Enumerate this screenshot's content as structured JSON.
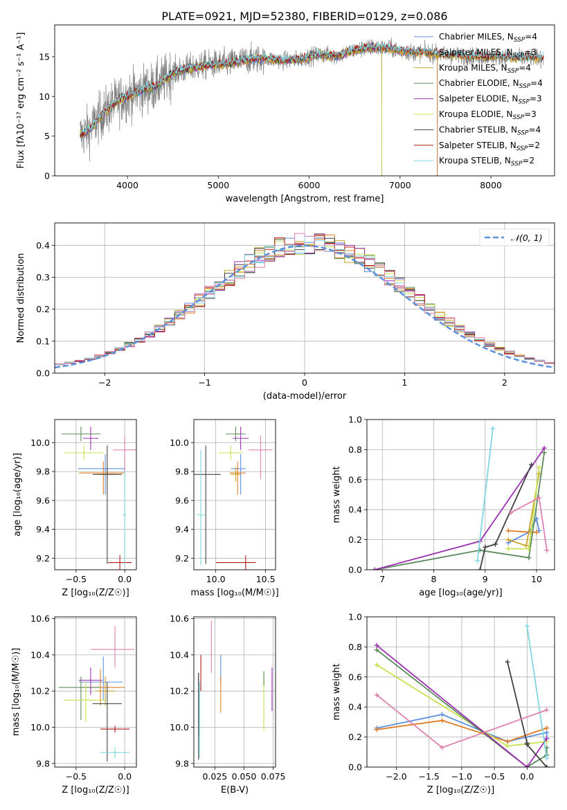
{
  "figure_title": "PLATE=0921, MJD=52380, FIBERID=0129, z=0.086",
  "colors": {
    "data": "#7f7f7f",
    "Chabrier MILES": "#5b8fdd",
    "Salpeter MILES": "#e07b22",
    "Kroupa MILES": "#c9a227",
    "Chabrier ELODIE": "#5a8a5a",
    "Salpeter ELODIE": "#9b30b0",
    "Kroupa ELODIE": "#c8e04a",
    "Chabrier STELIB": "#404040",
    "Salpeter STELIB": "#b01818",
    "Kroupa STELIB": "#7fd6e0",
    "Gaussian": "#5b8fdd",
    "Pink": "#e080b0"
  },
  "chart_data": [
    {
      "id": "spectrum",
      "type": "line",
      "title": "PLATE=0921, MJD=52380, FIBERID=0129, z=0.086",
      "xlabel": "wavelength [Angstrom, rest frame]",
      "ylabel": "Flux [fλ10⁻¹⁷ erg cm⁻² s⁻¹ A⁻¹]",
      "xlim": [
        3200,
        8700
      ],
      "ylim": [
        0,
        19
      ],
      "xticks": [
        4000,
        5000,
        6000,
        7000,
        8000
      ],
      "yticks": [
        0,
        5,
        10,
        15
      ],
      "legend_position": "right",
      "series": [
        {
          "name": "Chabrier MILES, N_SSP=4"
        },
        {
          "name": "Salpeter MILES, N_SSP=3"
        },
        {
          "name": "Kroupa MILES, N_SSP=4"
        },
        {
          "name": "Chabrier ELODIE, N_SSP=4"
        },
        {
          "name": "Salpeter ELODIE, N_SSP=3"
        },
        {
          "name": "Kroupa ELODIE, N_SSP=3"
        },
        {
          "name": "Chabrier STELIB, N_SSP=4"
        },
        {
          "name": "Salpeter STELIB, N_SSP=2"
        },
        {
          "name": "Kroupa STELIB, N_SSP=2"
        }
      ],
      "continuum": {
        "x": [
          3500,
          3600,
          3700,
          3800,
          3900,
          4000,
          4100,
          4200,
          4300,
          4400,
          4500,
          4700,
          4900,
          5100,
          5300,
          5500,
          5700,
          5900,
          6100,
          6300,
          6500,
          6700,
          6900,
          7100,
          7300,
          7500,
          7700,
          7900,
          8100,
          8300,
          8500
        ],
        "y": [
          5.2,
          6.0,
          7.5,
          8.5,
          9.5,
          10.0,
          10.5,
          11.0,
          11.2,
          12.0,
          13.0,
          13.6,
          14.0,
          14.1,
          14.6,
          14.8,
          14.5,
          14.7,
          15.3,
          15.1,
          15.8,
          16.2,
          16.0,
          15.6,
          15.5,
          15.2,
          15.1,
          15.0,
          15.0,
          14.8,
          14.9
        ]
      }
    },
    {
      "id": "residuals",
      "type": "line",
      "xlabel": "(data-model)/error",
      "ylabel": "Normed distribution",
      "xlim": [
        -2.5,
        2.5
      ],
      "ylim": [
        0,
        0.47
      ],
      "xticks": [
        -2,
        -1,
        0,
        1,
        2
      ],
      "yticks": [
        0.0,
        0.1,
        0.2,
        0.3,
        0.4
      ],
      "legend": "𝒩(0, 1)",
      "legend_position": "top-right",
      "reference": "standard normal pdf"
    },
    {
      "id": "age_vs_Z",
      "type": "scatter",
      "xlabel": "Z [log₁₀(Z/Z☉)]",
      "ylabel": "age  [log₁₀(age/yr)]",
      "xlim": [
        -0.72,
        0.12
      ],
      "ylim": [
        9.12,
        10.16
      ],
      "xticks": [
        -0.5,
        0.0
      ],
      "yticks": [
        9.2,
        9.4,
        9.6,
        9.8,
        10.0
      ],
      "points": [
        {
          "series": "Chabrier MILES",
          "x": -0.2,
          "y": 9.82,
          "xerr": [
            0.28,
            0.2
          ],
          "yerr": [
            0.18,
            0.1
          ]
        },
        {
          "series": "Salpeter MILES",
          "x": -0.22,
          "y": 9.79,
          "xerr": [
            0.25,
            0.22
          ],
          "yerr": [
            0.15,
            0.08
          ]
        },
        {
          "series": "Kroupa MILES",
          "x": -0.18,
          "y": 9.78,
          "xerr": [
            0.1,
            0.1
          ],
          "yerr": [
            0.05,
            0.05
          ]
        },
        {
          "series": "Chabrier ELODIE",
          "x": -0.45,
          "y": 10.06,
          "xerr": [
            0.2,
            0.2
          ],
          "yerr": [
            0.05,
            0.05
          ]
        },
        {
          "series": "Salpeter ELODIE",
          "x": -0.35,
          "y": 10.03,
          "xerr": [
            0.08,
            0.08
          ],
          "yerr": [
            0.08,
            0.08
          ]
        },
        {
          "series": "Kroupa ELODIE",
          "x": -0.42,
          "y": 9.93,
          "xerr": [
            0.2,
            0.2
          ],
          "yerr": [
            0.05,
            0.05
          ]
        },
        {
          "series": "Chabrier STELIB",
          "x": -0.18,
          "y": 9.78,
          "xerr": [
            0.15,
            0.15
          ],
          "yerr": [
            0.62,
            0.2
          ]
        },
        {
          "series": "Salpeter STELIB",
          "x": -0.05,
          "y": 9.17,
          "xerr": [
            0.12,
            0.12
          ],
          "yerr": [
            0.05,
            0.05
          ]
        },
        {
          "series": "Kroupa STELIB",
          "x": 0.0,
          "y": 9.5,
          "xerr": [
            0.02,
            0.02
          ],
          "yerr": [
            0.35,
            0.45
          ]
        },
        {
          "series": "Pink",
          "x": 0.0,
          "y": 9.95,
          "xerr": [
            0.12,
            0.12
          ],
          "yerr": [
            0.15,
            0.1
          ]
        }
      ]
    },
    {
      "id": "age_vs_mass",
      "type": "scatter",
      "xlabel": "mass [log₁₀(M/M☉)]",
      "ylabel": "",
      "xlim": [
        9.78,
        10.6
      ],
      "ylim": [
        9.12,
        10.16
      ],
      "xticks": [
        10.0,
        10.5
      ],
      "yticks": [
        9.2,
        9.4,
        9.6,
        9.8,
        10.0
      ],
      "points": [
        {
          "series": "Chabrier MILES",
          "x": 10.25,
          "y": 9.82,
          "xerr": [
            0.1,
            0.05
          ],
          "yerr": [
            0.18,
            0.1
          ]
        },
        {
          "series": "Salpeter MILES",
          "x": 10.22,
          "y": 9.79,
          "xerr": [
            0.08,
            0.08
          ],
          "yerr": [
            0.15,
            0.08
          ]
        },
        {
          "series": "Kroupa MILES",
          "x": 10.2,
          "y": 9.78,
          "xerr": [
            0.05,
            0.05
          ],
          "yerr": [
            0.05,
            0.05
          ]
        },
        {
          "series": "Chabrier ELODIE",
          "x": 10.2,
          "y": 10.06,
          "xerr": [
            0.1,
            0.1
          ],
          "yerr": [
            0.05,
            0.05
          ]
        },
        {
          "series": "Salpeter ELODIE",
          "x": 10.25,
          "y": 10.03,
          "xerr": [
            0.08,
            0.08
          ],
          "yerr": [
            0.08,
            0.08
          ]
        },
        {
          "series": "Kroupa ELODIE",
          "x": 10.15,
          "y": 9.93,
          "xerr": [
            0.12,
            0.12
          ],
          "yerr": [
            0.05,
            0.05
          ]
        },
        {
          "series": "Chabrier STELIB",
          "x": 9.9,
          "y": 9.78,
          "xerr": [
            0.15,
            0.15
          ],
          "yerr": [
            0.62,
            0.2
          ]
        },
        {
          "series": "Salpeter STELIB",
          "x": 10.3,
          "y": 9.17,
          "xerr": [
            0.3,
            0.1
          ],
          "yerr": [
            0.05,
            0.05
          ]
        },
        {
          "series": "Kroupa STELIB",
          "x": 9.85,
          "y": 9.5,
          "xerr": [
            0.04,
            0.04
          ],
          "yerr": [
            0.35,
            0.45
          ]
        },
        {
          "series": "Pink",
          "x": 10.45,
          "y": 9.95,
          "xerr": [
            0.12,
            0.12
          ],
          "yerr": [
            0.2,
            0.1
          ]
        }
      ]
    },
    {
      "id": "mass_weight_vs_age",
      "type": "line",
      "xlabel": "age  [log₁₀(age/yr)]",
      "ylabel": "mass weight",
      "xlim": [
        6.7,
        10.35
      ],
      "ylim": [
        0,
        1.0
      ],
      "xticks": [
        7,
        8,
        9,
        10
      ],
      "yticks": [
        0.0,
        0.2,
        0.4,
        0.6,
        0.8,
        1.0
      ],
      "series": [
        {
          "name": "Chabrier MILES",
          "x": [
            9.45,
            9.85,
            10.0,
            10.05
          ],
          "y": [
            0.18,
            0.25,
            0.34,
            0.26
          ]
        },
        {
          "name": "Salpeter MILES",
          "x": [
            9.45,
            9.9,
            10.0
          ],
          "y": [
            0.26,
            0.25,
            0.25
          ]
        },
        {
          "name": "Kroupa MILES",
          "x": [
            9.45,
            9.8,
            10.05
          ],
          "y": [
            0.2,
            0.16,
            0.64
          ]
        },
        {
          "name": "Chabrier ELODIE",
          "x": [
            6.85,
            8.9,
            9.85,
            10.15
          ],
          "y": [
            0.0,
            0.13,
            0.08,
            0.78
          ]
        },
        {
          "name": "Salpeter ELODIE",
          "x": [
            6.85,
            8.9,
            10.15
          ],
          "y": [
            0.0,
            0.19,
            0.81
          ]
        },
        {
          "name": "Kroupa ELODIE",
          "x": [
            9.45,
            9.85,
            10.05
          ],
          "y": [
            0.14,
            0.14,
            0.68
          ]
        },
        {
          "name": "Chabrier STELIB",
          "x": [
            8.9,
            9.0,
            9.2,
            9.9
          ],
          "y": [
            0.0,
            0.15,
            0.17,
            0.7
          ]
        },
        {
          "name": "Kroupa STELIB",
          "x": [
            8.85,
            9.15
          ],
          "y": [
            0.06,
            0.94
          ]
        },
        {
          "name": "Pink",
          "x": [
            9.5,
            10.05,
            10.2
          ],
          "y": [
            0.38,
            0.48,
            0.13
          ]
        }
      ]
    },
    {
      "id": "mass_vs_Z",
      "type": "scatter",
      "xlabel": "Z [log₁₀(Z/Z☉)]",
      "ylabel": "mass [log₁₀(M/M☉)]",
      "xlim": [
        -0.72,
        0.12
      ],
      "ylim": [
        9.78,
        10.61
      ],
      "xticks": [
        -0.5,
        0.0
      ],
      "yticks": [
        9.8,
        10.0,
        10.2,
        10.4,
        10.6
      ],
      "points": [
        {
          "series": "Chabrier MILES",
          "x": -0.22,
          "y": 10.25,
          "xerr": [
            0.25,
            0.2
          ],
          "yerr": [
            0.1,
            0.14
          ]
        },
        {
          "series": "Salpeter MILES",
          "x": -0.25,
          "y": 10.22,
          "xerr": [
            0.2,
            0.25
          ],
          "yerr": [
            0.1,
            0.1
          ]
        },
        {
          "series": "Kroupa MILES",
          "x": -0.2,
          "y": 10.2,
          "xerr": [
            0.1,
            0.1
          ],
          "yerr": [
            0.08,
            0.08
          ]
        },
        {
          "series": "Chabrier ELODIE",
          "x": -0.45,
          "y": 10.22,
          "xerr": [
            0.23,
            0.2
          ],
          "yerr": [
            0.18,
            0.06
          ]
        },
        {
          "series": "Salpeter ELODIE",
          "x": -0.35,
          "y": 10.26,
          "xerr": [
            0.12,
            0.12
          ],
          "yerr": [
            0.08,
            0.07
          ]
        },
        {
          "series": "Kroupa ELODIE",
          "x": -0.4,
          "y": 10.15,
          "xerr": [
            0.22,
            0.2
          ],
          "yerr": [
            0.12,
            0.1
          ]
        },
        {
          "series": "Chabrier STELIB",
          "x": -0.18,
          "y": 10.13,
          "xerr": [
            0.15,
            0.15
          ],
          "yerr": [
            0.32,
            0.12
          ]
        },
        {
          "series": "Salpeter STELIB",
          "x": -0.1,
          "y": 9.99,
          "xerr": [
            0.15,
            0.15
          ],
          "yerr": [
            0.02,
            0.02
          ]
        },
        {
          "series": "Kroupa STELIB",
          "x": -0.1,
          "y": 9.86,
          "xerr": [
            0.15,
            0.15
          ],
          "yerr": [
            0.03,
            0.03
          ]
        },
        {
          "series": "Pink",
          "x": -0.1,
          "y": 10.43,
          "xerr": [
            0.25,
            0.2
          ],
          "yerr": [
            0.1,
            0.13
          ]
        }
      ]
    },
    {
      "id": "mass_vs_ebv",
      "type": "scatter",
      "xlabel": "E(B-V)",
      "ylabel": "",
      "xlim": [
        0.007,
        0.077
      ],
      "ylim": [
        9.78,
        10.61
      ],
      "xticks": [
        0.025,
        0.05,
        0.075
      ],
      "yticks": [
        9.8,
        10.0,
        10.2,
        10.4,
        10.6
      ],
      "points": [
        {
          "series": "Chabrier ELODIE",
          "x": 0.011,
          "y": 10.15,
          "yerr": [
            0.2,
            0.15
          ]
        },
        {
          "series": "Chabrier STELIB",
          "x": 0.011,
          "y": 10.1,
          "yerr": [
            0.28,
            0.2
          ]
        },
        {
          "series": "Kroupa STELIB",
          "x": 0.012,
          "y": 10.05,
          "yerr": [
            0.22,
            0.2
          ]
        },
        {
          "series": "Salpeter STELIB",
          "x": 0.013,
          "y": 10.3,
          "yerr": [
            0.1,
            0.1
          ]
        },
        {
          "series": "Pink",
          "x": 0.022,
          "y": 10.45,
          "yerr": [
            0.15,
            0.14
          ]
        },
        {
          "series": "Chabrier MILES",
          "x": 0.03,
          "y": 10.3,
          "yerr": [
            0.05,
            0.1
          ]
        },
        {
          "series": "Salpeter MILES",
          "x": 0.03,
          "y": 10.18,
          "yerr": [
            0.1,
            0.1
          ]
        },
        {
          "series": "Kroupa ELODIE",
          "x": 0.067,
          "y": 10.18,
          "yerr": [
            0.2,
            0.12
          ]
        },
        {
          "series": "Chabrier ELODIE",
          "x": 0.067,
          "y": 10.28,
          "yerr": [
            0.05,
            0.03
          ]
        },
        {
          "series": "Salpeter ELODIE",
          "x": 0.074,
          "y": 10.21,
          "yerr": [
            0.12,
            0.12
          ]
        }
      ]
    },
    {
      "id": "mass_weight_vs_Z",
      "type": "line",
      "xlabel": "Z [log₁₀(Z/Z☉)]",
      "ylabel": "mass weight",
      "xlim": [
        -2.45,
        0.42
      ],
      "ylim": [
        0,
        1.0
      ],
      "xticks": [
        -2.0,
        -1.5,
        -1.0,
        -0.5,
        0.0
      ],
      "yticks": [
        0.0,
        0.2,
        0.4,
        0.6,
        0.8,
        1.0
      ],
      "series": [
        {
          "name": "Chabrier MILES",
          "x": [
            -2.3,
            -1.3,
            -0.3,
            0.3,
            0.3
          ],
          "y": [
            0.26,
            0.35,
            0.17,
            0.23,
            0.19
          ]
        },
        {
          "name": "Salpeter MILES",
          "x": [
            -2.3,
            -1.3,
            -0.3,
            0.3
          ],
          "y": [
            0.25,
            0.31,
            0.17,
            0.26
          ]
        },
        {
          "name": "Kroupa ELODIE",
          "x": [
            -2.3,
            -0.3,
            0.3
          ],
          "y": [
            0.68,
            0.14,
            0.17
          ]
        },
        {
          "name": "Chabrier ELODIE",
          "x": [
            -2.3,
            0.0,
            0.3,
            0.3
          ],
          "y": [
            0.78,
            0.0,
            0.08,
            0.13
          ]
        },
        {
          "name": "Salpeter ELODIE",
          "x": [
            -2.3,
            0.0,
            0.3
          ],
          "y": [
            0.81,
            0.0,
            0.19
          ]
        },
        {
          "name": "Chabrier STELIB",
          "x": [
            -0.3,
            0.0,
            0.0,
            0.3
          ],
          "y": [
            0.7,
            0.16,
            0.15,
            0.0
          ]
        },
        {
          "name": "Kroupa STELIB",
          "x": [
            0.0,
            0.3
          ],
          "y": [
            0.94,
            0.06
          ]
        },
        {
          "name": "Pink",
          "x": [
            -2.3,
            -1.3,
            0.3
          ],
          "y": [
            0.48,
            0.13,
            0.38
          ]
        }
      ]
    }
  ]
}
